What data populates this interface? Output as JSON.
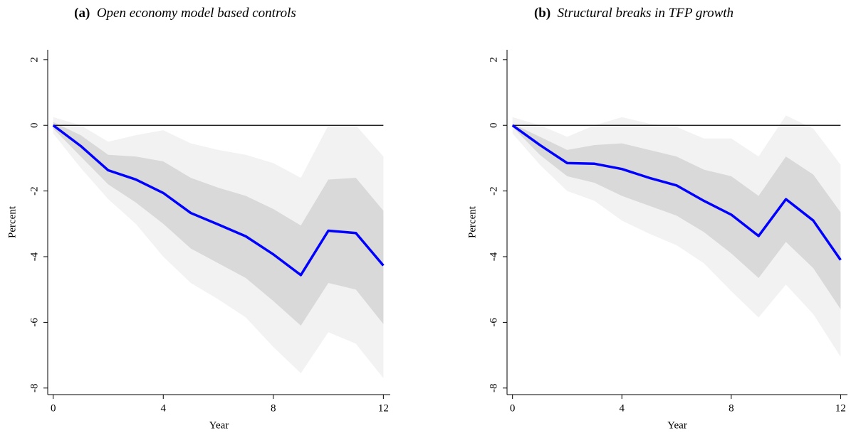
{
  "chart_data": [
    {
      "type": "line",
      "label": "(a)",
      "title": "Open economy model based controls",
      "xlabel": "Year",
      "ylabel": "Percent",
      "x": [
        0,
        1,
        2,
        3,
        4,
        5,
        6,
        7,
        8,
        9,
        10,
        11,
        12
      ],
      "xlim": [
        -0.2,
        12.25
      ],
      "xticks": [
        0,
        4,
        8,
        12
      ],
      "ylim": [
        -8.2,
        2.3
      ],
      "yticks": [
        -8,
        -6,
        -4,
        -2,
        0,
        2
      ],
      "reference_line": 0,
      "bands": [
        {
          "color": "#f2f2f2",
          "upper": [
            0.25,
            0.0,
            -0.5,
            -0.3,
            -0.15,
            -0.55,
            -0.75,
            -0.9,
            -1.15,
            -1.6,
            0.0,
            0.0,
            -0.95
          ],
          "lower": [
            -0.25,
            -1.3,
            -2.25,
            -3.0,
            -4.0,
            -4.8,
            -5.3,
            -5.85,
            -6.75,
            -7.55,
            -6.3,
            -6.65,
            -7.7
          ]
        },
        {
          "color": "#d9d9d9",
          "upper": [
            0.1,
            -0.3,
            -0.9,
            -0.95,
            -1.1,
            -1.6,
            -1.9,
            -2.15,
            -2.55,
            -3.05,
            -1.65,
            -1.6,
            -2.6
          ],
          "lower": [
            -0.1,
            -0.95,
            -1.8,
            -2.35,
            -3.0,
            -3.75,
            -4.2,
            -4.65,
            -5.35,
            -6.1,
            -4.8,
            -5.0,
            -6.05
          ]
        }
      ],
      "series": [
        {
          "color": "#0000ff",
          "values": [
            0,
            -0.63,
            -1.37,
            -1.65,
            -2.06,
            -2.67,
            -3.02,
            -3.38,
            -3.93,
            -4.56,
            -3.21,
            -3.28,
            -4.27
          ]
        }
      ]
    },
    {
      "type": "line",
      "label": "(b)",
      "title": "Structural breaks in TFP growth",
      "xlabel": "Year",
      "ylabel": "Percent",
      "x": [
        0,
        1,
        2,
        3,
        4,
        5,
        6,
        7,
        8,
        9,
        10,
        11,
        12
      ],
      "xlim": [
        -0.2,
        12.25
      ],
      "xticks": [
        0,
        4,
        8,
        12
      ],
      "ylim": [
        -8.2,
        2.3
      ],
      "yticks": [
        -8,
        -6,
        -4,
        -2,
        0,
        2
      ],
      "reference_line": 0,
      "bands": [
        {
          "color": "#f2f2f2",
          "upper": [
            0.25,
            0.0,
            -0.35,
            0.0,
            0.25,
            0.05,
            -0.05,
            -0.4,
            -0.4,
            -0.95,
            0.3,
            -0.1,
            -1.2
          ],
          "lower": [
            -0.25,
            -1.2,
            -2.0,
            -2.3,
            -2.9,
            -3.3,
            -3.65,
            -4.2,
            -5.05,
            -5.85,
            -4.85,
            -5.75,
            -7.05
          ]
        },
        {
          "color": "#d9d9d9",
          "upper": [
            0.05,
            -0.35,
            -0.75,
            -0.6,
            -0.55,
            -0.75,
            -0.95,
            -1.35,
            -1.55,
            -2.15,
            -0.95,
            -1.5,
            -2.65
          ],
          "lower": [
            -0.05,
            -0.9,
            -1.55,
            -1.75,
            -2.15,
            -2.45,
            -2.75,
            -3.25,
            -3.9,
            -4.65,
            -3.55,
            -4.35,
            -5.6
          ]
        }
      ],
      "series": [
        {
          "color": "#0000ff",
          "values": [
            0,
            -0.6,
            -1.15,
            -1.17,
            -1.33,
            -1.6,
            -1.83,
            -2.3,
            -2.72,
            -3.37,
            -2.25,
            -2.9,
            -4.1
          ]
        }
      ]
    }
  ]
}
